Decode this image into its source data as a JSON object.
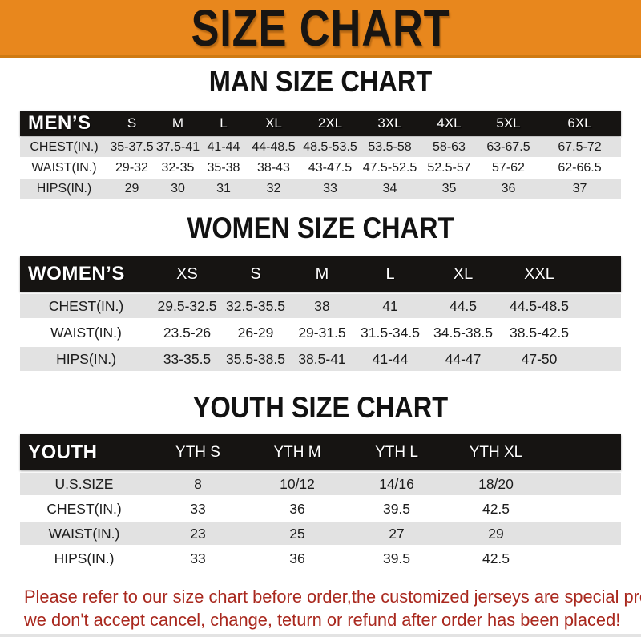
{
  "banner": {
    "title": "SIZE CHART"
  },
  "colors": {
    "banner_orange": "#E8871D",
    "header_black": "#161412",
    "row_gray": "#E2E2E2",
    "note_red": "#A9281E"
  },
  "sections": [
    {
      "title": "MAN SIZE CHART",
      "header_label": "MEN’S",
      "columns": [
        "S",
        "M",
        "L",
        "XL",
        "2XL",
        "3XL",
        "4XL",
        "5XL",
        "6XL"
      ],
      "rows": [
        {
          "label": "CHEST(IN.)",
          "values": [
            "35-37.5",
            "37.5-41",
            "41-44",
            "44-48.5",
            "48.5-53.5",
            "53.5-58",
            "58-63",
            "63-67.5",
            "67.5-72"
          ]
        },
        {
          "label": "WAIST(IN.)",
          "values": [
            "29-32",
            "32-35",
            "35-38",
            "38-43",
            "43-47.5",
            "47.5-52.5",
            "52.5-57",
            "57-62",
            "62-66.5"
          ]
        },
        {
          "label": "HIPS(IN.)",
          "values": [
            "29",
            "30",
            "31",
            "32",
            "33",
            "34",
            "35",
            "36",
            "37"
          ]
        }
      ]
    },
    {
      "title": "WOMEN SIZE CHART",
      "header_label": "WOMEN’S",
      "columns": [
        "XS",
        "S",
        "M",
        "L",
        "XL",
        "XXL"
      ],
      "rows": [
        {
          "label": "CHEST(IN.)",
          "values": [
            "29.5-32.5",
            "32.5-35.5",
            "38",
            "41",
            "44.5",
            "44.5-48.5"
          ]
        },
        {
          "label": "WAIST(IN.)",
          "values": [
            "23.5-26",
            "26-29",
            "29-31.5",
            "31.5-34.5",
            "34.5-38.5",
            "38.5-42.5"
          ]
        },
        {
          "label": "HIPS(IN.)",
          "values": [
            "33-35.5",
            "35.5-38.5",
            "38.5-41",
            "41-44",
            "44-47",
            "47-50"
          ]
        }
      ]
    },
    {
      "title": "YOUTH SIZE CHART",
      "header_label": "YOUTH",
      "columns": [
        "YTH S",
        "YTH M",
        "YTH L",
        "YTH XL"
      ],
      "rows": [
        {
          "label": "U.S.SIZE",
          "values": [
            "8",
            "10/12",
            "14/16",
            "18/20"
          ]
        },
        {
          "label": "CHEST(IN.)",
          "values": [
            "33",
            "36",
            "39.5",
            "42.5"
          ]
        },
        {
          "label": "WAIST(IN.)",
          "values": [
            "23",
            "25",
            "27",
            "29"
          ]
        },
        {
          "label": "HIPS(IN.)",
          "values": [
            "33",
            "36",
            "39.5",
            "42.5"
          ]
        }
      ]
    }
  ],
  "footer": {
    "line1": "Please refer to our size chart before order,the customized jerseys are special products,",
    "line2": "we don't accept cancel, change, teturn or refund after order has been placed!"
  }
}
